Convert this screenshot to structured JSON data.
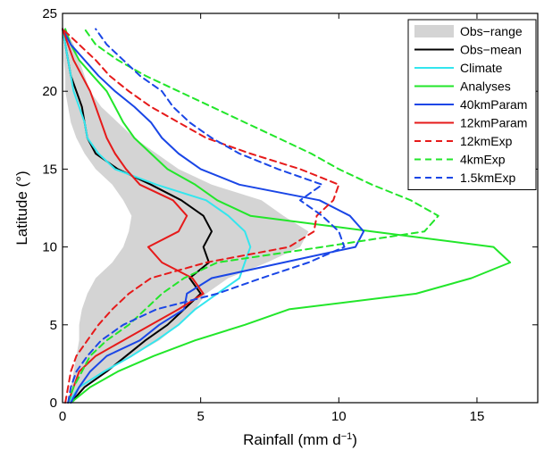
{
  "chart_data": {
    "type": "line",
    "xlabel": "Rainfall (mm d",
    "xlabel_sup": "−1",
    "xlabel_end": ")",
    "ylabel": "Latitude (°)",
    "xlim": [
      0,
      17.2
    ],
    "ylim": [
      0,
      25
    ],
    "xticks": [
      0,
      5,
      10,
      15
    ],
    "yticks": [
      0,
      5,
      10,
      15,
      20,
      25
    ],
    "legend_position": "top-right",
    "obs_range": {
      "name": "Obs−range",
      "color": "#d4d4d4",
      "lower": [
        [
          0.2,
          0
        ],
        [
          0.3,
          1
        ],
        [
          0.4,
          2
        ],
        [
          0.5,
          3
        ],
        [
          0.6,
          4
        ],
        [
          0.6,
          5
        ],
        [
          0.7,
          6
        ],
        [
          0.9,
          7
        ],
        [
          1.2,
          8
        ],
        [
          1.8,
          9
        ],
        [
          2.2,
          10
        ],
        [
          2.4,
          11
        ],
        [
          2.5,
          12
        ],
        [
          2.2,
          13
        ],
        [
          1.8,
          14
        ],
        [
          1.2,
          15
        ],
        [
          0.8,
          16
        ],
        [
          0.5,
          17
        ],
        [
          0.3,
          18
        ],
        [
          0.2,
          19
        ],
        [
          0.1,
          20
        ],
        [
          0.1,
          21
        ],
        [
          0.05,
          22
        ],
        [
          0.05,
          23
        ],
        [
          0.05,
          24
        ]
      ],
      "upper": [
        [
          0.4,
          0
        ],
        [
          0.8,
          1
        ],
        [
          1.5,
          2
        ],
        [
          2.5,
          3
        ],
        [
          3.5,
          4
        ],
        [
          4.2,
          5
        ],
        [
          4.8,
          6
        ],
        [
          5.2,
          7
        ],
        [
          6.0,
          8
        ],
        [
          7.4,
          9
        ],
        [
          8.6,
          10
        ],
        [
          8.9,
          11
        ],
        [
          8.0,
          12
        ],
        [
          7.2,
          13
        ],
        [
          5.4,
          14
        ],
        [
          4.2,
          15
        ],
        [
          3.4,
          16
        ],
        [
          2.6,
          17
        ],
        [
          2.0,
          18
        ],
        [
          1.4,
          19
        ],
        [
          1.0,
          20
        ],
        [
          0.8,
          21
        ],
        [
          0.6,
          22
        ],
        [
          0.4,
          23
        ],
        [
          0.1,
          24
        ]
      ]
    },
    "series": [
      {
        "name": "Obs−mean",
        "color": "#000000",
        "dash": false,
        "points": [
          [
            0.3,
            0
          ],
          [
            0.8,
            1
          ],
          [
            1.6,
            2
          ],
          [
            2.3,
            3
          ],
          [
            3.0,
            4
          ],
          [
            3.8,
            5
          ],
          [
            4.4,
            6
          ],
          [
            5.0,
            7
          ],
          [
            4.6,
            8
          ],
          [
            5.3,
            9
          ],
          [
            5.1,
            10
          ],
          [
            5.4,
            11
          ],
          [
            5.1,
            12
          ],
          [
            4.3,
            13
          ],
          [
            3.2,
            14
          ],
          [
            2.0,
            15
          ],
          [
            1.2,
            16
          ],
          [
            0.9,
            17
          ],
          [
            0.8,
            18
          ],
          [
            0.7,
            19
          ],
          [
            0.5,
            20
          ],
          [
            0.3,
            21
          ],
          [
            0.2,
            22
          ],
          [
            0.1,
            23
          ],
          [
            0.0,
            24
          ]
        ]
      },
      {
        "name": "Climate",
        "color": "#33e6ee",
        "dash": false,
        "points": [
          [
            0.2,
            0
          ],
          [
            0.6,
            1
          ],
          [
            1.5,
            2
          ],
          [
            2.5,
            3
          ],
          [
            3.4,
            4
          ],
          [
            4.2,
            5
          ],
          [
            4.8,
            6
          ],
          [
            5.6,
            7
          ],
          [
            6.4,
            8
          ],
          [
            6.6,
            9
          ],
          [
            6.8,
            10
          ],
          [
            6.6,
            11
          ],
          [
            6.0,
            12
          ],
          [
            5.2,
            13
          ],
          [
            3.4,
            14
          ],
          [
            1.9,
            15
          ],
          [
            1.3,
            16
          ],
          [
            0.9,
            17
          ],
          [
            0.8,
            18
          ],
          [
            0.6,
            19
          ],
          [
            0.4,
            20
          ],
          [
            0.3,
            21
          ],
          [
            0.2,
            22
          ],
          [
            0.1,
            23
          ],
          [
            0.0,
            24
          ]
        ]
      },
      {
        "name": "Analyses",
        "color": "#22e62a",
        "dash": false,
        "points": [
          [
            0.3,
            0
          ],
          [
            1.0,
            1
          ],
          [
            2.0,
            2
          ],
          [
            3.3,
            3
          ],
          [
            4.8,
            4
          ],
          [
            6.6,
            5
          ],
          [
            8.2,
            6
          ],
          [
            12.8,
            7
          ],
          [
            14.8,
            8
          ],
          [
            16.2,
            9
          ],
          [
            15.6,
            10
          ],
          [
            11.2,
            11
          ],
          [
            6.8,
            12
          ],
          [
            5.6,
            13
          ],
          [
            4.8,
            14
          ],
          [
            3.8,
            15
          ],
          [
            3.2,
            16
          ],
          [
            2.6,
            17
          ],
          [
            2.2,
            18
          ],
          [
            1.9,
            19
          ],
          [
            1.6,
            20
          ],
          [
            1.1,
            21
          ],
          [
            0.6,
            22
          ],
          [
            0.3,
            23
          ],
          [
            0.1,
            24
          ]
        ]
      },
      {
        "name": "40kmParam",
        "color": "#1a46e6",
        "dash": false,
        "points": [
          [
            0.3,
            0
          ],
          [
            0.6,
            1
          ],
          [
            1.0,
            2
          ],
          [
            1.6,
            3
          ],
          [
            2.8,
            4
          ],
          [
            3.5,
            5
          ],
          [
            4.4,
            6
          ],
          [
            4.5,
            7
          ],
          [
            5.4,
            8
          ],
          [
            8.0,
            9
          ],
          [
            10.6,
            10
          ],
          [
            10.9,
            11
          ],
          [
            10.4,
            12
          ],
          [
            9.3,
            13
          ],
          [
            6.4,
            14
          ],
          [
            5.0,
            15
          ],
          [
            4.2,
            16
          ],
          [
            3.6,
            17
          ],
          [
            3.2,
            18
          ],
          [
            2.6,
            19
          ],
          [
            1.9,
            20
          ],
          [
            1.3,
            21
          ],
          [
            0.8,
            22
          ],
          [
            0.3,
            23
          ],
          [
            0.0,
            24
          ]
        ]
      },
      {
        "name": "12kmParam",
        "color": "#e61a1a",
        "dash": false,
        "points": [
          [
            0.2,
            0
          ],
          [
            0.4,
            1
          ],
          [
            0.6,
            2
          ],
          [
            1.2,
            3
          ],
          [
            2.2,
            4
          ],
          [
            3.2,
            5
          ],
          [
            4.2,
            6
          ],
          [
            5.1,
            7
          ],
          [
            4.7,
            8
          ],
          [
            3.6,
            9
          ],
          [
            3.1,
            10
          ],
          [
            4.2,
            11
          ],
          [
            4.5,
            12
          ],
          [
            4.0,
            13
          ],
          [
            2.8,
            14
          ],
          [
            2.3,
            15
          ],
          [
            1.9,
            16
          ],
          [
            1.6,
            17
          ],
          [
            1.4,
            18
          ],
          [
            1.2,
            19
          ],
          [
            1.0,
            20
          ],
          [
            0.7,
            21
          ],
          [
            0.4,
            22
          ],
          [
            0.2,
            23
          ],
          [
            0.0,
            24
          ]
        ]
      },
      {
        "name": "12kmExp",
        "color": "#e61a1a",
        "dash": true,
        "points": [
          [
            0.1,
            0
          ],
          [
            0.2,
            1
          ],
          [
            0.3,
            2
          ],
          [
            0.5,
            3
          ],
          [
            0.9,
            4
          ],
          [
            1.3,
            5
          ],
          [
            1.8,
            6
          ],
          [
            2.4,
            7
          ],
          [
            3.2,
            8
          ],
          [
            5.2,
            9
          ],
          [
            8.2,
            10
          ],
          [
            9.1,
            11
          ],
          [
            9.2,
            12
          ],
          [
            9.8,
            13
          ],
          [
            10.0,
            14
          ],
          [
            8.6,
            15
          ],
          [
            6.8,
            16
          ],
          [
            5.2,
            17
          ],
          [
            4.2,
            18
          ],
          [
            3.2,
            19
          ],
          [
            2.4,
            20
          ],
          [
            1.7,
            21
          ],
          [
            1.2,
            22
          ],
          [
            0.6,
            23
          ],
          [
            0.0,
            24
          ]
        ]
      },
      {
        "name": "4kmExp",
        "color": "#22e62a",
        "dash": true,
        "points": [
          [
            0.2,
            0
          ],
          [
            0.4,
            1
          ],
          [
            0.7,
            2
          ],
          [
            1.0,
            3
          ],
          [
            1.6,
            4
          ],
          [
            2.4,
            5
          ],
          [
            3.0,
            6
          ],
          [
            3.6,
            7
          ],
          [
            4.4,
            8
          ],
          [
            5.6,
            9
          ],
          [
            9.4,
            10
          ],
          [
            13.1,
            11
          ],
          [
            13.6,
            12
          ],
          [
            12.6,
            13
          ],
          [
            11.2,
            14
          ],
          [
            10.0,
            15
          ],
          [
            9.0,
            16
          ],
          [
            7.8,
            17
          ],
          [
            6.6,
            18
          ],
          [
            5.4,
            19
          ],
          [
            4.2,
            20
          ],
          [
            3.0,
            21
          ],
          [
            2.0,
            22
          ],
          [
            1.2,
            23
          ],
          [
            0.8,
            24
          ]
        ]
      },
      {
        "name": "1.5kmExp",
        "color": "#1a46e6",
        "dash": true,
        "points": [
          [
            0.2,
            0
          ],
          [
            0.3,
            1
          ],
          [
            0.5,
            2
          ],
          [
            0.9,
            3
          ],
          [
            1.4,
            4
          ],
          [
            2.2,
            5
          ],
          [
            3.4,
            6
          ],
          [
            5.6,
            7
          ],
          [
            7.2,
            8
          ],
          [
            8.9,
            9
          ],
          [
            10.2,
            10
          ],
          [
            10.0,
            11
          ],
          [
            9.4,
            12
          ],
          [
            8.6,
            13
          ],
          [
            9.4,
            14
          ],
          [
            7.8,
            15
          ],
          [
            6.4,
            16
          ],
          [
            5.4,
            17
          ],
          [
            4.6,
            18
          ],
          [
            4.0,
            19
          ],
          [
            3.6,
            20
          ],
          [
            2.8,
            21
          ],
          [
            2.2,
            22
          ],
          [
            1.6,
            23
          ],
          [
            1.2,
            24
          ]
        ]
      }
    ]
  }
}
